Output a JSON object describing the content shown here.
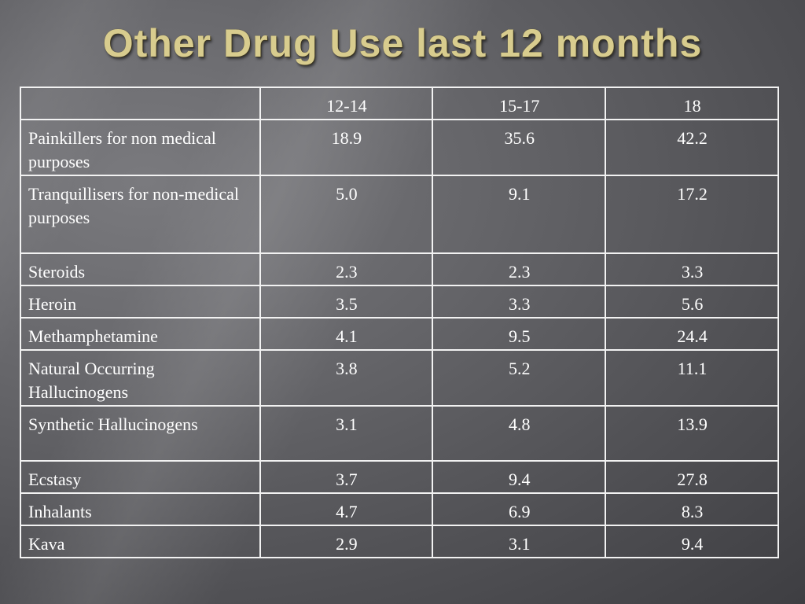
{
  "title": "Other Drug Use last 12 months",
  "table": {
    "header": {
      "blank": "",
      "cols": [
        "12-14",
        "15-17",
        "18"
      ]
    },
    "rows": [
      {
        "label": "Painkillers for non medical purposes",
        "values": [
          "18.9",
          "35.6",
          "42.2"
        ]
      },
      {
        "label": "Tranquillisers for non-medical purposes",
        "values": [
          "5.0",
          "9.1",
          "17.2"
        ]
      },
      {
        "label": "Steroids",
        "values": [
          "2.3",
          "2.3",
          "3.3"
        ]
      },
      {
        "label": "Heroin",
        "values": [
          "3.5",
          "3.3",
          "5.6"
        ]
      },
      {
        "label": "Methamphetamine",
        "values": [
          "4.1",
          "9.5",
          "24.4"
        ]
      },
      {
        "label": "Natural Occurring Hallucinogens",
        "values": [
          "3.8",
          "5.2",
          "11.1"
        ]
      },
      {
        "label": "Synthetic Hallucinogens",
        "values": [
          "3.1",
          "4.8",
          "13.9"
        ]
      },
      {
        "label": "Ecstasy",
        "values": [
          "3.7",
          "9.4",
          "27.8"
        ]
      },
      {
        "label": "Inhalants",
        "values": [
          "4.7",
          "6.9",
          "8.3"
        ]
      },
      {
        "label": "Kava",
        "values": [
          "2.9",
          "3.1",
          "9.4"
        ]
      }
    ]
  }
}
